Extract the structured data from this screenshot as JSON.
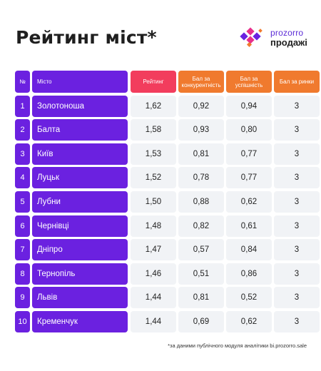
{
  "title": "Рейтинг міст*",
  "logo": {
    "top": "prozorro",
    "bottom": "продажі"
  },
  "colors": {
    "primary": "#6b21e0",
    "rating": "#f23d5d",
    "score": "#f07a2e",
    "cell": "#f1f3f6"
  },
  "headers": {
    "num": "№",
    "city": "Місто",
    "rating": "Рейтинг",
    "competition": "Бал за конкурентність",
    "success": "Бал за успішність",
    "markets": "Бал за ринки"
  },
  "rows": [
    {
      "num": "1",
      "city": "Золотоноша",
      "rating": "1,62",
      "competition": "0,92",
      "success": "0,94",
      "markets": "3"
    },
    {
      "num": "2",
      "city": "Балта",
      "rating": "1,58",
      "competition": "0,93",
      "success": "0,80",
      "markets": "3"
    },
    {
      "num": "3",
      "city": "Київ",
      "rating": "1,53",
      "competition": "0,81",
      "success": "0,77",
      "markets": "3"
    },
    {
      "num": "4",
      "city": "Луцьк",
      "rating": "1,52",
      "competition": "0,78",
      "success": "0,77",
      "markets": "3"
    },
    {
      "num": "5",
      "city": "Лубни",
      "rating": "1,50",
      "competition": "0,88",
      "success": "0,62",
      "markets": "3"
    },
    {
      "num": "6",
      "city": "Чернівці",
      "rating": "1,48",
      "competition": "0,82",
      "success": "0,61",
      "markets": "3"
    },
    {
      "num": "7",
      "city": "Дніпро",
      "rating": "1,47",
      "competition": "0,57",
      "success": "0,84",
      "markets": "3"
    },
    {
      "num": "8",
      "city": "Тернопіль",
      "rating": "1,46",
      "competition": "0,51",
      "success": "0,86",
      "markets": "3"
    },
    {
      "num": "9",
      "city": "Львів",
      "rating": "1,44",
      "competition": "0,81",
      "success": "0,52",
      "markets": "3"
    },
    {
      "num": "10",
      "city": "Кременчук",
      "rating": "1,44",
      "competition": "0,69",
      "success": "0,62",
      "markets": "3"
    }
  ],
  "footnote": "*за даними публічного модуля аналітики bi.prozorro.sale"
}
